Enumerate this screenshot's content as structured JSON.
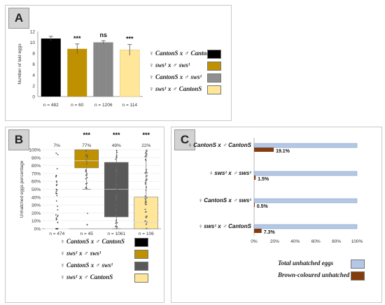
{
  "panel_a": {
    "label": "A",
    "ylabel": "Number of laid eggs",
    "y_ticks": [
      "0",
      "2",
      "4",
      "6",
      "8",
      "10",
      "12"
    ],
    "sig": [
      "",
      "***",
      "ns",
      "***"
    ],
    "n_labels": [
      "n = 482",
      "n = 60",
      "n = 1206",
      "n = 114"
    ],
    "legend": [
      {
        "text": "♀ CantonS x ♂ CantonS",
        "color": "#000000"
      },
      {
        "text": "♀ sws¹ x ♂ sws¹",
        "color": "#bf9000"
      },
      {
        "text": "♀ CantonS x ♂ sws¹",
        "color": "#909090"
      },
      {
        "text": "♀ sws¹ x ♂ CantonS",
        "color": "#ffe699"
      }
    ]
  },
  "panel_b": {
    "label": "B",
    "ylabel": "Unhatched eggs percentage",
    "y_ticks": [
      "0%",
      "10%",
      "20%",
      "30%",
      "40%",
      "50%",
      "60%",
      "70%",
      "80%",
      "90%",
      "100%"
    ],
    "sig": [
      "",
      "***",
      "***",
      "***"
    ],
    "pct": [
      "7%",
      "77%",
      "49%",
      "22%"
    ],
    "n_labels": [
      "n = 474",
      "n = 45",
      "n = 1061",
      "n = 106"
    ],
    "legend": [
      {
        "text": "♀ CantonS x ♂ CantonS",
        "color": "#000000"
      },
      {
        "text": "♀ sws¹ x ♂ sws¹",
        "color": "#bf9000"
      },
      {
        "text": "♀ CantonS x ♂ sws¹",
        "color": "#595959"
      },
      {
        "text": "♀ sws¹ x ♂ CantonS",
        "color": "#ffe699"
      }
    ]
  },
  "panel_c": {
    "label": "C",
    "rows": [
      "♀ CantonS x ♂ CantonS",
      "♀ sws¹ x ♂ sws¹",
      "♀ CantonS x ♂ sws¹",
      "♀ sws¹ x ♂ CantonS"
    ],
    "brown_labels": [
      "19.1%",
      "1.5%",
      "0.5%",
      "7.3%"
    ],
    "x_ticks": [
      "0%",
      "20%",
      "40%",
      "60%",
      "80%",
      "100%"
    ],
    "legend": [
      {
        "text": "Total unhatched eggs",
        "color": "#b4c7e7"
      },
      {
        "text": "Brown-coloured unhatched eggs",
        "color": "#843c0c"
      }
    ]
  },
  "chart_data": [
    {
      "type": "bar",
      "title": "",
      "ylabel": "Number of laid eggs",
      "ylim": [
        0,
        12
      ],
      "categories": [
        "♀ CantonS x ♂ CantonS",
        "♀ sws¹ x ♂ sws¹",
        "♀ CantonS x ♂ sws¹",
        "♀ sws¹ x ♂ CantonS"
      ],
      "values": [
        10.7,
        8.8,
        10.0,
        8.6
      ],
      "errors": [
        0.4,
        0.9,
        0.3,
        1.0
      ],
      "colors": [
        "#000000",
        "#bf9000",
        "#909090",
        "#ffe699"
      ],
      "significance": [
        "",
        "***",
        "ns",
        "***"
      ],
      "n": [
        482,
        60,
        1206,
        114
      ]
    },
    {
      "type": "box",
      "ylabel": "Unhatched eggs percentage",
      "ylim": [
        0,
        100
      ],
      "categories": [
        "♀ CantonS x ♂ CantonS",
        "♀ sws¹ x ♂ sws¹",
        "♀ CantonS x ♂ sws¹",
        "♀ sws¹ x ♂ CantonS"
      ],
      "q1": [
        0,
        77,
        15,
        0
      ],
      "median": [
        0,
        86,
        50,
        8
      ],
      "q3": [
        0,
        100,
        84,
        40
      ],
      "whisker_low": [
        0,
        50,
        0,
        0
      ],
      "whisker_high": [
        0,
        100,
        100,
        100
      ],
      "mean_labels": [
        "7%",
        "77%",
        "49%",
        "22%"
      ],
      "colors": [
        "#000000",
        "#bf9000",
        "#595959",
        "#ffe699"
      ],
      "significance": [
        "",
        "***",
        "***",
        "***"
      ],
      "n": [
        474,
        45,
        1061,
        106
      ]
    },
    {
      "type": "bar",
      "orientation": "horizontal",
      "xlim": [
        0,
        100
      ],
      "categories": [
        "♀ CantonS x ♂ CantonS",
        "♀ sws¹ x ♂ sws¹",
        "♀ CantonS x ♂ sws¹",
        "♀ sws¹ x ♂ CantonS"
      ],
      "series": [
        {
          "name": "Total unhatched eggs",
          "values": [
            100,
            100,
            100,
            100
          ],
          "color": "#b4c7e7"
        },
        {
          "name": "Brown-coloured unhatched eggs",
          "values": [
            19.1,
            1.5,
            0.5,
            7.3
          ],
          "color": "#843c0c"
        }
      ]
    }
  ]
}
